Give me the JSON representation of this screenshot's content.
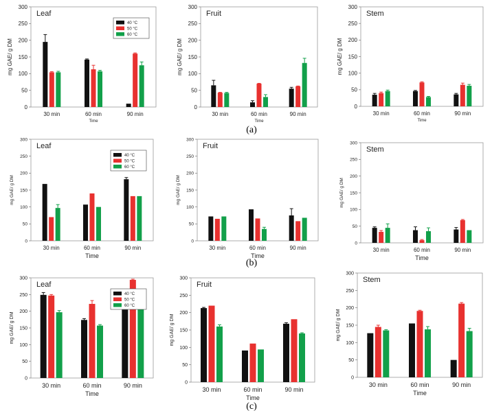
{
  "colors": {
    "c40": "#111111",
    "c50": "#e8312f",
    "c60": "#12a04a"
  },
  "chart_data": [
    {
      "type": "bar",
      "row": "a",
      "title": "Leaf",
      "ylabel": "mg GAE/ g DM",
      "xlabel": "Time",
      "ylim": [
        0,
        300
      ],
      "yticks": [
        "0",
        "50",
        "100",
        "150",
        "200",
        "250",
        "300"
      ],
      "categories": [
        "30 min",
        "60 min",
        "90 min"
      ],
      "legend": [
        "40 °C",
        "50 °C",
        "60 °C"
      ],
      "series": [
        {
          "name": "40 °C",
          "values": [
            195,
            142,
            10
          ],
          "errors": [
            22,
            2,
            0
          ]
        },
        {
          "name": "50 °C",
          "values": [
            104,
            113,
            160
          ],
          "errors": [
            2,
            12,
            2
          ]
        },
        {
          "name": "60 °C",
          "values": [
            104,
            107,
            125
          ],
          "errors": [
            3,
            3,
            10
          ]
        }
      ]
    },
    {
      "type": "bar",
      "row": "a",
      "title": "Fruit",
      "ylabel": "mg GAE/ g DM",
      "xlabel": "Time",
      "ylim": [
        0,
        300
      ],
      "yticks": [
        "0",
        "50",
        "100",
        "150",
        "200",
        "250",
        "300"
      ],
      "categories": [
        "30 min",
        "60 min",
        "90 min"
      ],
      "series": [
        {
          "name": "40 °C",
          "values": [
            65,
            14,
            55
          ],
          "errors": [
            15,
            5,
            4
          ]
        },
        {
          "name": "50 °C",
          "values": [
            43,
            70,
            62
          ],
          "errors": [
            1,
            1,
            1
          ]
        },
        {
          "name": "60 °C",
          "values": [
            42,
            30,
            132
          ],
          "errors": [
            2,
            7,
            14
          ]
        }
      ]
    },
    {
      "type": "bar",
      "row": "a",
      "title": "Stem",
      "ylabel": "mg GAE/ g DM",
      "xlabel": "Time",
      "ylim": [
        0,
        300
      ],
      "yticks": [
        "0",
        "50",
        "100",
        "150",
        "200",
        "250",
        "300"
      ],
      "categories": [
        "30 min",
        "60 min",
        "90 min"
      ],
      "series": [
        {
          "name": "40 °C",
          "values": [
            35,
            46,
            36
          ],
          "errors": [
            4,
            2,
            3
          ]
        },
        {
          "name": "50 °C",
          "values": [
            40,
            72,
            65
          ],
          "errors": [
            3,
            2,
            5
          ]
        },
        {
          "name": "60 °C",
          "values": [
            46,
            28,
            62
          ],
          "errors": [
            3,
            2,
            4
          ]
        }
      ]
    },
    {
      "type": "bar",
      "row": "b",
      "title": "Leaf",
      "ylabel": "mg GAE/ g DM",
      "xlabel": "Time",
      "ylim": [
        0,
        300
      ],
      "yticks": [
        "0",
        "50",
        "100",
        "150",
        "200",
        "250",
        "300"
      ],
      "categories": [
        "30 min",
        "60 min",
        "90 min"
      ],
      "legend": [
        "40 °C",
        "50 °C",
        "60 °C"
      ],
      "series": [
        {
          "name": "40 °C",
          "values": [
            168,
            107,
            182
          ],
          "errors": [
            0,
            0,
            5
          ]
        },
        {
          "name": "50 °C",
          "values": [
            70,
            140,
            132
          ],
          "errors": [
            0,
            0,
            0
          ]
        },
        {
          "name": "60 °C",
          "values": [
            97,
            100,
            132
          ],
          "errors": [
            10,
            0,
            0
          ]
        }
      ]
    },
    {
      "type": "bar",
      "row": "b",
      "title": "Fruit",
      "ylabel": "mg GAE/ g DM",
      "xlabel": "Time",
      "ylim": [
        0,
        300
      ],
      "yticks": [
        "0",
        "50",
        "100",
        "150",
        "200",
        "250",
        "300"
      ],
      "categories": [
        "30 min",
        "60 min",
        "90 min"
      ],
      "series": [
        {
          "name": "40 °C",
          "values": [
            72,
            93,
            75
          ],
          "errors": [
            0,
            0,
            20
          ]
        },
        {
          "name": "50 °C",
          "values": [
            65,
            66,
            58
          ],
          "errors": [
            0,
            0,
            0
          ]
        },
        {
          "name": "60 °C",
          "values": [
            72,
            35,
            68
          ],
          "errors": [
            0,
            5,
            0
          ]
        }
      ]
    },
    {
      "type": "bar",
      "row": "b",
      "title": "Stem",
      "ylabel": "mg GAE/ g DM",
      "xlabel": "Time",
      "ylim": [
        0,
        300
      ],
      "yticks": [
        "0",
        "50",
        "100",
        "150",
        "200",
        "250",
        "300"
      ],
      "categories": [
        "30 min",
        "60 min",
        "90 min"
      ],
      "series": [
        {
          "name": "40 °C",
          "values": [
            45,
            38,
            40
          ],
          "errors": [
            3,
            10,
            6
          ]
        },
        {
          "name": "50 °C",
          "values": [
            33,
            8,
            68
          ],
          "errors": [
            4,
            2,
            2
          ]
        },
        {
          "name": "60 °C",
          "values": [
            45,
            35,
            38
          ],
          "errors": [
            12,
            10,
            0
          ]
        }
      ]
    },
    {
      "type": "bar",
      "row": "c",
      "title": "Leaf",
      "ylabel": "mg GAE/ g DM",
      "xlabel": "Time",
      "ylim": [
        0,
        300
      ],
      "yticks": [
        "0",
        "50",
        "100",
        "150",
        "200",
        "250",
        "300"
      ],
      "categories": [
        "30 min",
        "60 min",
        "90 min"
      ],
      "legend": [
        "40 °C",
        "50 °C",
        "60 °C"
      ],
      "series": [
        {
          "name": "40 °C",
          "values": [
            249,
            174,
            205
          ],
          "errors": [
            7,
            4,
            0
          ]
        },
        {
          "name": "50 °C",
          "values": [
            247,
            222,
            294
          ],
          "errors": [
            3,
            10,
            2
          ]
        },
        {
          "name": "60 °C",
          "values": [
            197,
            157,
            234
          ],
          "errors": [
            5,
            3,
            10
          ]
        }
      ]
    },
    {
      "type": "bar",
      "row": "c",
      "title": "Fruit",
      "ylabel": "mg GAE/ g DM",
      "xlabel": "Time",
      "ylim": [
        0,
        300
      ],
      "yticks": [
        "0",
        "50",
        "100",
        "150",
        "200",
        "250",
        "300"
      ],
      "categories": [
        "30 min",
        "60 min",
        "90 min"
      ],
      "series": [
        {
          "name": "40 °C",
          "values": [
            213,
            91,
            168
          ],
          "errors": [
            2,
            0,
            3
          ]
        },
        {
          "name": "50 °C",
          "values": [
            220,
            111,
            181
          ],
          "errors": [
            0,
            0,
            0
          ]
        },
        {
          "name": "60 °C",
          "values": [
            160,
            94,
            140
          ],
          "errors": [
            5,
            0,
            2
          ]
        }
      ]
    },
    {
      "type": "bar",
      "row": "c",
      "title": "Stem",
      "ylabel": "mg GAE/ g DM",
      "xlabel": "Time",
      "ylim": [
        0,
        300
      ],
      "yticks": [
        "0",
        "50",
        "100",
        "150",
        "200",
        "250",
        "300"
      ],
      "categories": [
        "30 min",
        "60 min",
        "90 min"
      ],
      "series": [
        {
          "name": "40 °C",
          "values": [
            127,
            155,
            50
          ],
          "errors": [
            0,
            0,
            0
          ]
        },
        {
          "name": "50 °C",
          "values": [
            145,
            191,
            212
          ],
          "errors": [
            5,
            2,
            3
          ]
        },
        {
          "name": "60 °C",
          "values": [
            135,
            138,
            133
          ],
          "errors": [
            2,
            8,
            8
          ]
        }
      ]
    }
  ],
  "panel_labels": [
    "(a)",
    "(b)",
    "(c)"
  ]
}
